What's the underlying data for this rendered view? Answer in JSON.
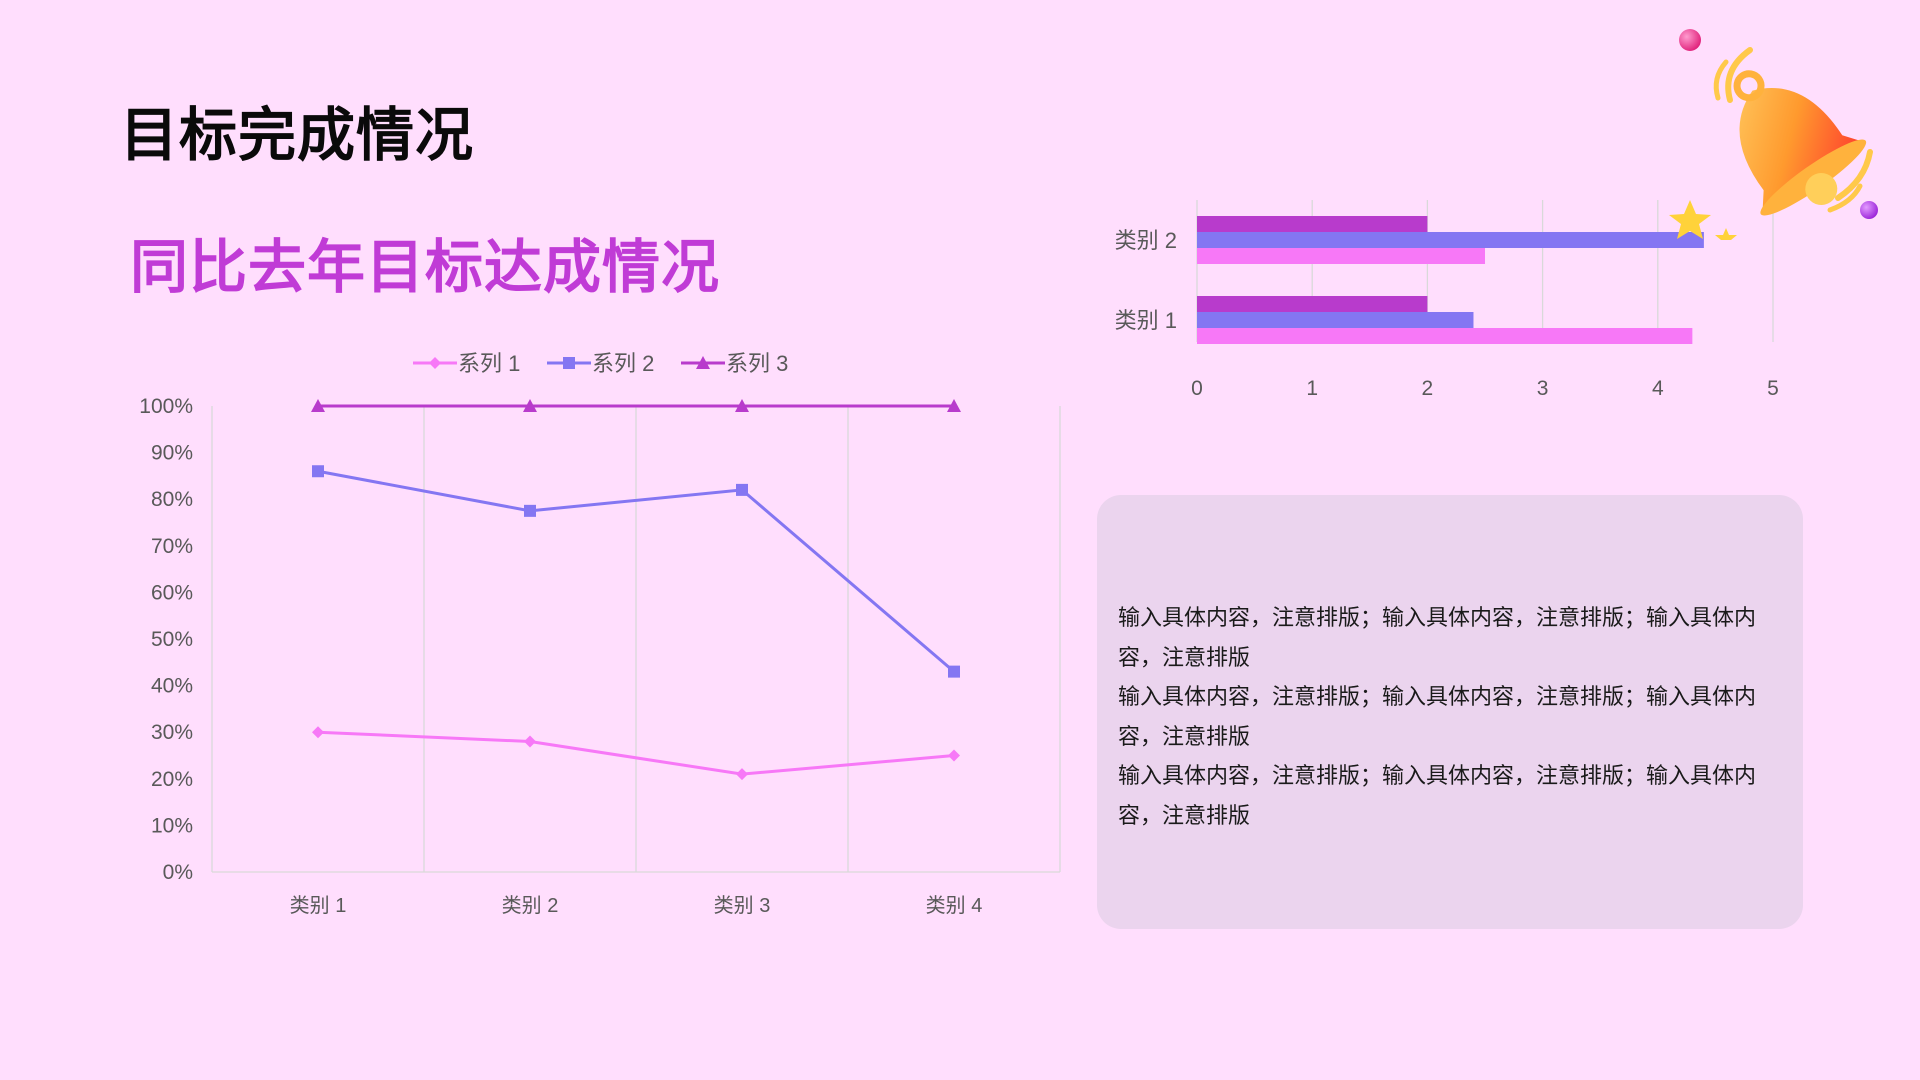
{
  "page": {
    "title": "目标完成情况",
    "subtitle": "同比去年目标达成情况"
  },
  "colors": {
    "background": "#ffdefd",
    "series1": "#f778f7",
    "series2": "#8476f2",
    "series3": "#b83bcc",
    "subtitle": "#c03bd6",
    "text_box_bg": "#ebd4ee"
  },
  "text_box": {
    "paragraphs": [
      "输入具体内容，注意排版；输入具体内容，注意排版；输入具体内容，注意排版",
      "输入具体内容，注意排版；输入具体内容，注意排版；输入具体内容，注意排版",
      "输入具体内容，注意排版；输入具体内容，注意排版；输入具体内容，注意排版"
    ]
  },
  "decoration": {
    "icon": "bell-icon"
  },
  "chart_data": [
    {
      "type": "line",
      "categories": [
        "类别 1",
        "类别 2",
        "类别 3",
        "类别 4"
      ],
      "series": [
        {
          "name": "系列 1",
          "values": [
            0.3,
            0.28,
            0.21,
            0.25
          ],
          "marker": "diamond"
        },
        {
          "name": "系列 2",
          "values": [
            0.86,
            0.775,
            0.82,
            0.43
          ],
          "marker": "square"
        },
        {
          "name": "系列 3",
          "values": [
            1.0,
            1.0,
            1.0,
            1.0
          ],
          "marker": "triangle"
        }
      ],
      "ylim": [
        0,
        1
      ],
      "yticks": [
        "0%",
        "10%",
        "20%",
        "30%",
        "40%",
        "50%",
        "60%",
        "70%",
        "80%",
        "90%",
        "100%"
      ],
      "grid": "vertical",
      "legend": "top"
    },
    {
      "type": "bar",
      "orientation": "horizontal",
      "categories": [
        "类别 1",
        "类别 2"
      ],
      "series": [
        {
          "name": "系列 1",
          "values": [
            4.3,
            2.5
          ]
        },
        {
          "name": "系列 2",
          "values": [
            2.4,
            4.4
          ]
        },
        {
          "name": "系列 3",
          "values": [
            2,
            2
          ]
        }
      ],
      "xlim": [
        0,
        5
      ],
      "xticks": [
        "0",
        "1",
        "2",
        "3",
        "4",
        "5"
      ],
      "grid": "vertical",
      "legend": "none"
    }
  ]
}
